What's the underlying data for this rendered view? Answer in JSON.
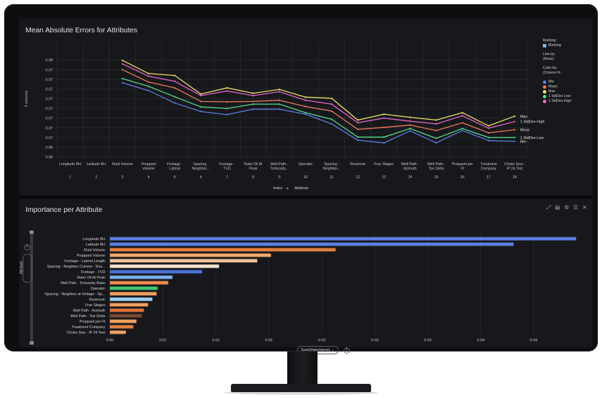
{
  "colors": {
    "min": "#5b7fe6",
    "mean": "#f47e5c",
    "max": "#f5e86a",
    "low": "#52e08f",
    "high": "#ee66cf"
  },
  "top_panel": {
    "title": "Mean Absolute Errors for Attributes"
  },
  "bottom_panel": {
    "title": "Importance per Attribute"
  },
  "legend": {
    "marking_label": "Marking:",
    "marking_item": "Marking",
    "line_by_label": "Line by:",
    "line_by_value": "(None)",
    "color_by_label": "Color by:",
    "color_by_value": "(Column N...",
    "items": [
      "Min",
      "Mean",
      "Max",
      "1 StdDev Low",
      "1 StdDev High"
    ]
  },
  "top_axis": {
    "ylabel": "5 columns",
    "xlabel_index": "Index",
    "xlabel_attr": "Attribute",
    "arrow": "▸"
  },
  "bottom_axis": {
    "selector": "Attribute",
    "sum_selector": "Sum(Importance)",
    "chevron": "⌄",
    "plus": "+"
  },
  "icons": [
    "expand-icon",
    "notes-icon",
    "gear-icon",
    "list-icon",
    "close-icon"
  ],
  "chart_data": [
    {
      "type": "line",
      "title": "Mean Absolute Errors for Attributes",
      "ylabel": "5 columns",
      "xlabel": "Index • Attribute",
      "ylim": [
        0.055,
        0.085
      ],
      "yticks": [
        "0.08",
        "0.07",
        "0.07",
        "0.07",
        "0.07",
        "0.07",
        "0.07",
        "0.07",
        "0.07",
        "0.06",
        "0.06"
      ],
      "ytick_values": [
        0.08,
        0.0775,
        0.075,
        0.0725,
        0.07,
        0.0675,
        0.065,
        0.0625,
        0.06,
        0.0575,
        0.055
      ],
      "categories": [
        "Longitude BH",
        "Latitude BH",
        "Fluid Volume",
        "Proppant Volume",
        "Footage - Lateral Le...",
        "Spacing - Neighbor...",
        "Footage - TVD",
        "Ratio Oil At Peak",
        "Well Path - Tortuosity...",
        "Operator",
        "Spacing - Neighbor...",
        "Reservoir",
        "Frac Stages",
        "Well Path - Azimuth",
        "Well Path - Toe Delta",
        "Proppant per Ft",
        "Treatment Company",
        "Choke Size - IP 24 Test"
      ],
      "index": [
        "1",
        "2",
        "3",
        "4",
        "5",
        "6",
        "7",
        "8",
        "9",
        "10",
        "11",
        "12",
        "13",
        "14",
        "15",
        "16",
        "17",
        "18"
      ],
      "series": [
        {
          "name": "Max",
          "key": "max",
          "values": [
            null,
            null,
            0.0799,
            0.0765,
            0.076,
            0.0712,
            0.0728,
            0.0714,
            0.0724,
            0.0704,
            0.0701,
            0.0645,
            0.066,
            0.0652,
            0.0645,
            0.0664,
            0.063,
            0.0655
          ]
        },
        {
          "name": "1 StdDev High",
          "key": "high",
          "values": [
            null,
            null,
            0.079,
            0.0758,
            0.0745,
            0.0708,
            0.072,
            0.0708,
            0.0718,
            0.0696,
            0.0686,
            0.0638,
            0.065,
            0.0642,
            0.0635,
            0.0656,
            0.0624,
            0.0641
          ]
        },
        {
          "name": "Mean",
          "key": "mean",
          "values": [
            null,
            null,
            0.0775,
            0.0743,
            0.0728,
            0.0693,
            0.0692,
            0.0693,
            0.0696,
            0.068,
            0.0668,
            0.0621,
            0.0626,
            0.0632,
            0.0618,
            0.0638,
            0.0612,
            0.062
          ]
        },
        {
          "name": "1 StdDev Low",
          "key": "low",
          "values": [
            null,
            null,
            0.0752,
            0.0732,
            0.0705,
            0.0679,
            0.0675,
            0.0686,
            0.0686,
            0.0664,
            0.0647,
            0.0601,
            0.0601,
            0.0623,
            0.0598,
            0.0623,
            0.06,
            0.06
          ]
        },
        {
          "name": "Min",
          "key": "min",
          "values": [
            null,
            null,
            0.0741,
            0.0721,
            0.0689,
            0.0667,
            0.0659,
            0.0673,
            0.0673,
            0.066,
            0.0635,
            0.0593,
            0.0586,
            0.0617,
            0.0586,
            0.0618,
            0.0592,
            0.059
          ]
        }
      ],
      "end_labels": [
        "Max",
        "1 StdDev High",
        "Mean",
        "1 StdDev Low",
        "Min"
      ]
    },
    {
      "type": "bar",
      "orientation": "horizontal",
      "title": "Importance per Attribute",
      "xlabel": "Sum(Importance)",
      "ylabel": "Attribute",
      "xlim": [
        0,
        0.0445
      ],
      "xticks": [
        "0.00",
        "0.01",
        "0.01",
        "0.02",
        "0.02",
        "0.03",
        "0.03",
        "0.04",
        "0.04"
      ],
      "xtick_values": [
        0,
        0.005,
        0.01,
        0.015,
        0.02,
        0.025,
        0.03,
        0.035,
        0.04
      ],
      "categories": [
        "Longitude BH",
        "Latitude BH",
        "Fluid Volume",
        "Proppant Volume",
        "Footage - Lateral Length",
        "Spacing - Neighbor Current - Stra...",
        "Footage - TVD",
        "Ratio Oil At Peak",
        "Well Path - Tortuosity Ratio",
        "Operator",
        "Spacing - Neighbor at Vintage - Sp...",
        "Reservoir",
        "Frac Stages",
        "Well Path - Azimuth",
        "Well Path - Toe Delta",
        "Proppant per Ft",
        "Treatment Company",
        "Choke Size - IP 24 Test"
      ],
      "values": [
        0.044,
        0.0381,
        0.0213,
        0.0152,
        0.0139,
        0.0103,
        0.0087,
        0.0059,
        0.0055,
        0.0045,
        0.0044,
        0.004,
        0.0036,
        0.0032,
        0.003,
        0.0025,
        0.0022,
        0.0015
      ],
      "colors": [
        "#5b7ee0",
        "#5b7ee0",
        "#e07f3e",
        "#f0a86a",
        "#f4c49a",
        "#f7e3cf",
        "#4b6fd8",
        "#7ab0f0",
        "#ee8a52",
        "#3ec86e",
        "#f0a060",
        "#9fd0f0",
        "#f0a060",
        "#e0703a",
        "#7a4a32",
        "#f0a060",
        "#e07f3e",
        "#f0a060"
      ]
    }
  ]
}
